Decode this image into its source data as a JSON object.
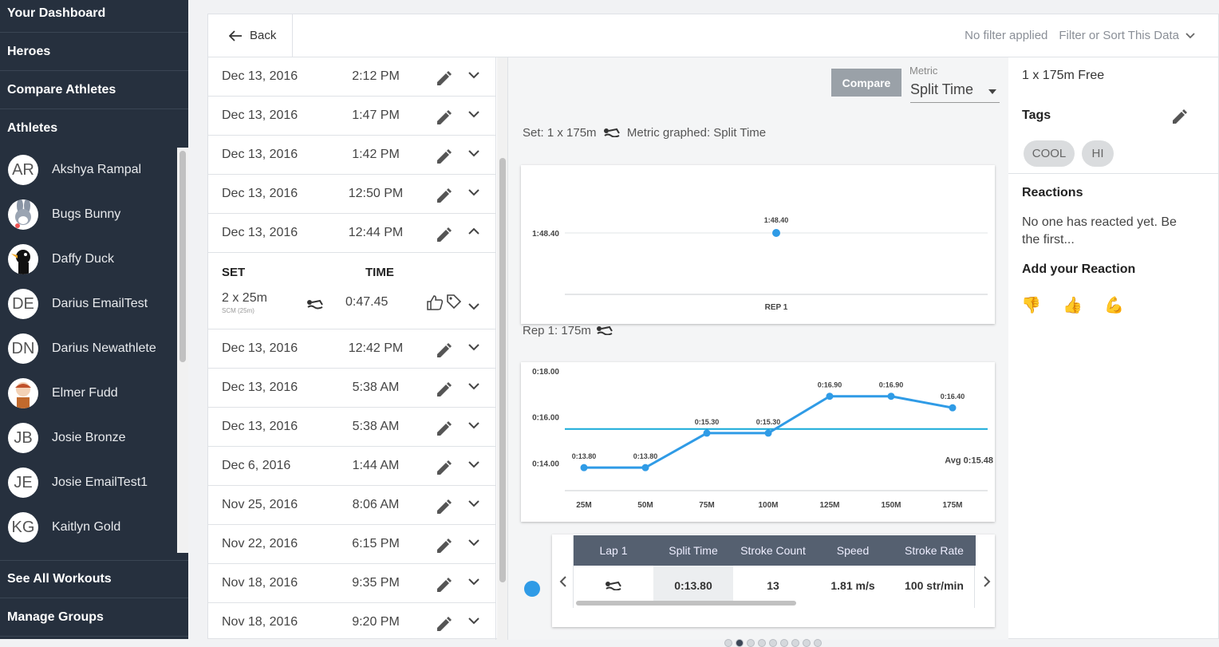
{
  "sidebar": {
    "nav": [
      "Your Dashboard",
      "Heroes",
      "Compare Athletes",
      "Athletes"
    ],
    "athletes": [
      {
        "initials": "AR",
        "name": "Akshya Rampal",
        "avatar": "initials"
      },
      {
        "initials": "",
        "name": "Bugs Bunny",
        "avatar": "bugs-bunny-avatar"
      },
      {
        "initials": "",
        "name": "Daffy Duck",
        "avatar": "daffy-duck-avatar"
      },
      {
        "initials": "DE",
        "name": "Darius EmailTest",
        "avatar": "initials"
      },
      {
        "initials": "DN",
        "name": "Darius Newathlete",
        "avatar": "initials"
      },
      {
        "initials": "",
        "name": "Elmer Fudd",
        "avatar": "elmer-fudd-avatar"
      },
      {
        "initials": "JB",
        "name": "Josie Bronze",
        "avatar": "initials"
      },
      {
        "initials": "JE",
        "name": "Josie EmailTest1",
        "avatar": "initials"
      },
      {
        "initials": "KG",
        "name": "Kaitlyn Gold",
        "avatar": "initials"
      }
    ],
    "bottom_nav": [
      "See All Workouts",
      "Manage Groups"
    ]
  },
  "topbar": {
    "back_label": "Back",
    "filter_status": "No filter applied",
    "filter_sort_label": "Filter or Sort This Data"
  },
  "workouts_before": [
    {
      "date": "Dec 13, 2016",
      "time": "2:12 PM"
    },
    {
      "date": "Dec 13, 2016",
      "time": "1:47 PM"
    },
    {
      "date": "Dec 13, 2016",
      "time": "1:42 PM"
    },
    {
      "date": "Dec 13, 2016",
      "time": "12:50 PM"
    }
  ],
  "expanded_workout": {
    "date": "Dec 13, 2016",
    "time": "12:44 PM",
    "set_header": "SET",
    "time_header": "TIME",
    "set": {
      "label": "2 x 25m",
      "course": "SCM (25m)",
      "time": "0:47.45"
    }
  },
  "workouts_after": [
    {
      "date": "Dec 13, 2016",
      "time": "12:42 PM"
    },
    {
      "date": "Dec 13, 2016",
      "time": "5:38 AM"
    },
    {
      "date": "Dec 13, 2016",
      "time": "5:38 AM"
    },
    {
      "date": "Dec 6, 2016",
      "time": "1:44 AM"
    },
    {
      "date": "Nov 25, 2016",
      "time": "8:06 AM"
    },
    {
      "date": "Nov 22, 2016",
      "time": "6:15 PM"
    },
    {
      "date": "Nov 18, 2016",
      "time": "9:35 PM"
    },
    {
      "date": "Nov 18, 2016",
      "time": "9:20 PM"
    }
  ],
  "center": {
    "compare_label": "Compare",
    "metric_label": "Metric",
    "metric_value": "Split Time",
    "set_caption_a": "Set: 1 x 175m",
    "set_caption_b": "Metric graphed: Split Time",
    "rep_caption": "Rep 1: 175m"
  },
  "chart_data": [
    {
      "type": "scatter",
      "categories": [
        "REP 1"
      ],
      "values": [
        "1:48.40"
      ],
      "values_seconds": [
        108.4
      ],
      "ytick_labels": [
        "1:48.40"
      ],
      "point_labels": [
        "1:48.40"
      ],
      "color": "#2f9be6"
    },
    {
      "type": "line",
      "categories": [
        "25M",
        "50M",
        "75M",
        "100M",
        "125M",
        "150M",
        "175M"
      ],
      "values_seconds": [
        13.8,
        13.8,
        15.3,
        15.3,
        16.9,
        16.9,
        16.4
      ],
      "point_labels": [
        "0:13.80",
        "0:13.80",
        "0:15.30",
        "0:15.30",
        "0:16.90",
        "0:16.90",
        "0:16.40"
      ],
      "ytick_labels": [
        "0:18.00",
        "0:16.00",
        "0:14.00"
      ],
      "yticks_seconds": [
        18,
        16,
        14
      ],
      "ylim": [
        12.8,
        18
      ],
      "average_seconds": 15.48,
      "average_label": "Avg 0:15.48",
      "line_color": "#2f9be6",
      "avg_color": "#15a9d8"
    }
  ],
  "lap_table": {
    "headers": [
      "Lap 1",
      "Split Time",
      "Stroke Count",
      "Speed",
      "Stroke Rate"
    ],
    "row": {
      "stroke_icon": "freestyle-swimmer-icon",
      "split": "0:13.80",
      "count": "13",
      "speed": "1.81 m/s",
      "rate": "100 str/min"
    }
  },
  "pager": {
    "count": 9,
    "active": 1
  },
  "right": {
    "set_title": "1 x 175m Free",
    "tags_label": "Tags",
    "tags": [
      "COOL",
      "HI"
    ],
    "reactions_label": "Reactions",
    "reactions_text": "No one has reacted yet. Be the first...",
    "add_reaction_label": "Add your Reaction",
    "reactions": [
      "👎",
      "👍",
      "💪"
    ]
  }
}
